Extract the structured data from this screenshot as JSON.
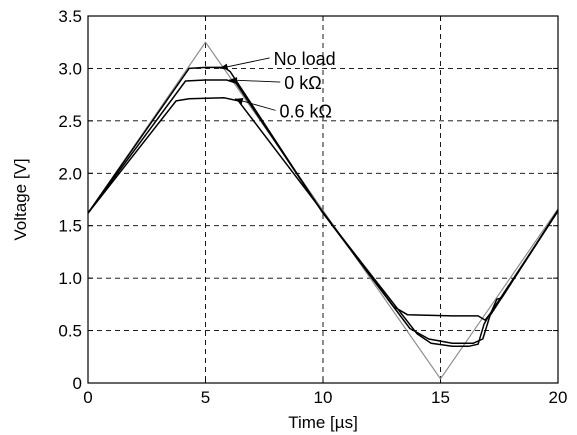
{
  "chart_data": {
    "type": "line",
    "xlabel": "Time [µs]",
    "ylabel": "Voltage [V]",
    "xlim": [
      0,
      20
    ],
    "ylim": [
      0,
      3.5
    ],
    "xticks": [
      "0",
      "5",
      "10",
      "15",
      "20"
    ],
    "yticks": [
      "0",
      "0.5",
      "1.0",
      "1.5",
      "2.0",
      "2.5",
      "3.0",
      "3.5"
    ],
    "grid": "dashed, vertical at x = 5, 10, 15; horizontal at every y tick",
    "series": [
      {
        "color": "#8c8c8c",
        "points": [
          [
            0,
            1.62
          ],
          [
            5,
            3.25
          ],
          [
            15,
            0.04
          ],
          [
            20,
            1.66
          ]
        ]
      },
      {
        "name": "No load",
        "color": "#000000",
        "points": [
          [
            0,
            1.62
          ],
          [
            4.3,
            3.0
          ],
          [
            5,
            3.01
          ],
          [
            5.8,
            3.01
          ],
          [
            6.05,
            2.97
          ],
          [
            10,
            1.62
          ],
          [
            14.0,
            0.47
          ],
          [
            14.6,
            0.38
          ],
          [
            15.5,
            0.35
          ],
          [
            16.2,
            0.35
          ],
          [
            16.6,
            0.37
          ],
          [
            16.85,
            0.56
          ],
          [
            17.05,
            0.64
          ],
          [
            20,
            1.64
          ]
        ]
      },
      {
        "name": "0 kΩ",
        "color": "#000000",
        "points": [
          [
            0,
            1.62
          ],
          [
            4.15,
            2.88
          ],
          [
            5,
            2.89
          ],
          [
            5.9,
            2.89
          ],
          [
            6.3,
            2.86
          ],
          [
            10,
            1.62
          ],
          [
            13.7,
            0.52
          ],
          [
            14.5,
            0.42
          ],
          [
            15.5,
            0.38
          ],
          [
            16.4,
            0.38
          ],
          [
            16.8,
            0.42
          ],
          [
            17.1,
            0.64
          ],
          [
            20,
            1.64
          ]
        ]
      },
      {
        "name": "0.6 kΩ",
        "color": "#000000",
        "points": [
          [
            0,
            1.62
          ],
          [
            3.75,
            2.69
          ],
          [
            4.3,
            2.71
          ],
          [
            5.8,
            2.72
          ],
          [
            6.4,
            2.69
          ],
          [
            10,
            1.63
          ],
          [
            13.0,
            0.73
          ],
          [
            13.6,
            0.65
          ],
          [
            15.5,
            0.64
          ],
          [
            16.6,
            0.64
          ],
          [
            16.9,
            0.6
          ],
          [
            17.15,
            0.67
          ],
          [
            17.4,
            0.8
          ],
          [
            17.6,
            0.81
          ],
          [
            20,
            1.65
          ]
        ]
      }
    ],
    "annotations": [
      {
        "text": "No load",
        "label_at": [
          7.9,
          3.1
        ],
        "points_to": [
          5.6,
          3.0
        ]
      },
      {
        "text": "0 kΩ",
        "label_at": [
          8.35,
          2.87
        ],
        "points_to": [
          6.0,
          2.89
        ]
      },
      {
        "text": "0.6 kΩ",
        "label_at": [
          8.15,
          2.6
        ],
        "points_to": [
          6.25,
          2.71
        ]
      }
    ]
  }
}
